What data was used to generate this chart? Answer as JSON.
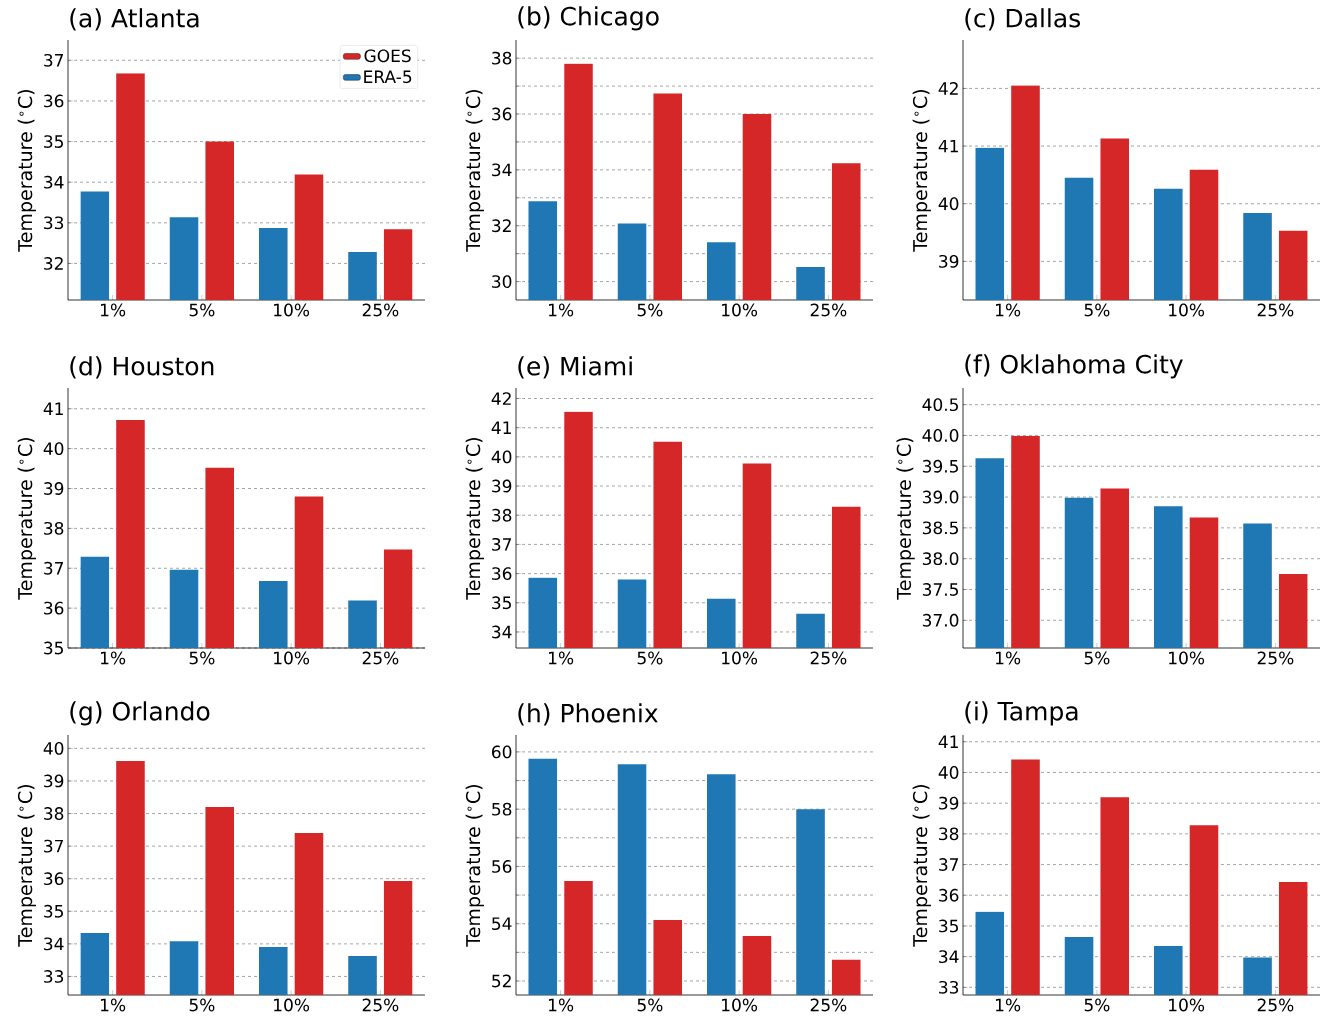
{
  "chart_data": [
    {
      "type": "bar",
      "title": "(a) Atlanta",
      "ylabel": "Temperature ($^{∘}$C)",
      "categories": [
        "1%",
        "5%",
        "10%",
        "25%"
      ],
      "ylim": [
        31.1,
        37.5
      ],
      "yticks": [
        32,
        33,
        34,
        35,
        36,
        37
      ],
      "grid": "y",
      "legend": "top right",
      "series": [
        {
          "name": "ERA-5",
          "color": "#1f77b4",
          "values": [
            33.77,
            33.14,
            32.87,
            32.28
          ]
        },
        {
          "name": "GOES",
          "color": "#d62728",
          "values": [
            36.68,
            35.0,
            34.19,
            32.84
          ]
        }
      ]
    },
    {
      "type": "bar",
      "title": "(b) Chicago",
      "ylabel": "Temperature ($^{∘}$C)",
      "categories": [
        "1%",
        "5%",
        "10%",
        "25%"
      ],
      "ylim": [
        29.34,
        38.65
      ],
      "yticks": [
        30,
        {
          "value": 31,
          "label": null
        },
        32,
        {
          "value": 33,
          "label": null
        },
        34,
        {
          "value": 35,
          "label": null
        },
        36,
        {
          "value": 37,
          "label": null
        },
        38
      ],
      "grid": "y",
      "series": [
        {
          "color": "#1f77b4",
          "values": [
            32.88,
            32.08,
            31.41,
            30.52
          ]
        },
        {
          "color": "#d62728",
          "values": [
            37.8,
            36.73,
            36.0,
            34.24
          ]
        }
      ]
    },
    {
      "type": "bar",
      "title": "(c) Dallas",
      "ylabel": "Temperature ($^{∘}$C)",
      "categories": [
        "1%",
        "5%",
        "10%",
        "25%"
      ],
      "ylim": [
        38.33,
        42.84
      ],
      "yticks": [
        39,
        40,
        41,
        42
      ],
      "grid": "y",
      "series": [
        {
          "color": "#1f77b4",
          "values": [
            40.97,
            40.45,
            40.26,
            39.84
          ]
        },
        {
          "color": "#d62728",
          "values": [
            42.05,
            41.13,
            40.59,
            39.53
          ]
        }
      ]
    },
    {
      "type": "bar",
      "title": "(d) Houston",
      "ylabel": "Temperature ($^{∘}$C)",
      "categories": [
        "1%",
        "5%",
        "10%",
        "25%"
      ],
      "ylim": [
        35,
        41.52
      ],
      "yticks": [
        35,
        36,
        37,
        38,
        39,
        40,
        41
      ],
      "grid": "y",
      "series": [
        {
          "color": "#1f77b4",
          "values": [
            37.29,
            36.96,
            36.68,
            36.19
          ]
        },
        {
          "color": "#d62728",
          "values": [
            40.72,
            39.52,
            38.8,
            37.47
          ]
        }
      ]
    },
    {
      "type": "bar",
      "title": "(e) Miami",
      "ylabel": "Temperature ($^{∘}$C)",
      "categories": [
        "1%",
        "5%",
        "10%",
        "25%"
      ],
      "ylim": [
        33.45,
        42.36
      ],
      "yticks": [
        34,
        35,
        36,
        37,
        38,
        39,
        40,
        41,
        42
      ],
      "grid": "y",
      "series": [
        {
          "color": "#1f77b4",
          "values": [
            35.86,
            35.8,
            35.14,
            34.62
          ]
        },
        {
          "color": "#d62728",
          "values": [
            41.55,
            40.52,
            39.77,
            38.29
          ]
        }
      ]
    },
    {
      "type": "bar",
      "title": "(f) Oklahoma City",
      "ylabel": "Temperature ($^{∘}$C)",
      "categories": [
        "1%",
        "5%",
        "10%",
        "25%"
      ],
      "ylim": [
        36.55,
        40.77
      ],
      "yticks": [
        {
          "value": 37,
          "label": "37.0"
        },
        37.5,
        {
          "value": 38,
          "label": "38.0"
        },
        38.5,
        {
          "value": 39,
          "label": "39.0"
        },
        39.5,
        {
          "value": 40,
          "label": "40.0"
        },
        40.5
      ],
      "grid": "y",
      "series": [
        {
          "color": "#1f77b4",
          "values": [
            39.63,
            38.99,
            38.85,
            38.57
          ]
        },
        {
          "color": "#d62728",
          "values": [
            39.99,
            39.14,
            38.67,
            37.75
          ]
        }
      ]
    },
    {
      "type": "bar",
      "title": "(g) Orlando",
      "ylabel": "Temperature ($^{∘}$C)",
      "categories": [
        "1%",
        "5%",
        "10%",
        "25%"
      ],
      "ylim": [
        32.43,
        40.41
      ],
      "yticks": [
        33,
        34,
        35,
        36,
        37,
        38,
        39,
        40
      ],
      "grid": "y",
      "series": [
        {
          "color": "#1f77b4",
          "values": [
            34.33,
            34.08,
            33.9,
            33.63
          ]
        },
        {
          "color": "#d62728",
          "values": [
            39.61,
            38.2,
            37.4,
            35.93
          ]
        }
      ]
    },
    {
      "type": "bar",
      "title": "(h) Phoenix",
      "ylabel": "Temperature ($^{∘}$C)",
      "categories": [
        "1%",
        "5%",
        "10%",
        "25%"
      ],
      "ylim": [
        51.51,
        60.59
      ],
      "yticks": [
        52,
        {
          "value": 53,
          "label": null
        },
        54,
        {
          "value": 55,
          "label": null
        },
        56,
        {
          "value": 57,
          "label": null
        },
        58,
        {
          "value": 59,
          "label": null
        },
        60
      ],
      "grid": "y",
      "series": [
        {
          "color": "#1f77b4",
          "values": [
            59.76,
            59.57,
            59.22,
            58.0
          ]
        },
        {
          "color": "#d62728",
          "values": [
            55.49,
            54.13,
            53.57,
            52.74
          ]
        }
      ]
    },
    {
      "type": "bar",
      "title": "(i) Tampa",
      "ylabel": "Temperature ($^{∘}$C)",
      "categories": [
        "1%",
        "5%",
        "10%",
        "25%"
      ],
      "ylim": [
        32.75,
        41.22
      ],
      "yticks": [
        33,
        34,
        35,
        36,
        37,
        38,
        39,
        40,
        41
      ],
      "grid": "y",
      "series": [
        {
          "color": "#1f77b4",
          "values": [
            35.46,
            34.64,
            34.35,
            33.97
          ]
        },
        {
          "color": "#d62728",
          "values": [
            40.42,
            39.19,
            38.28,
            36.43
          ]
        }
      ]
    }
  ]
}
